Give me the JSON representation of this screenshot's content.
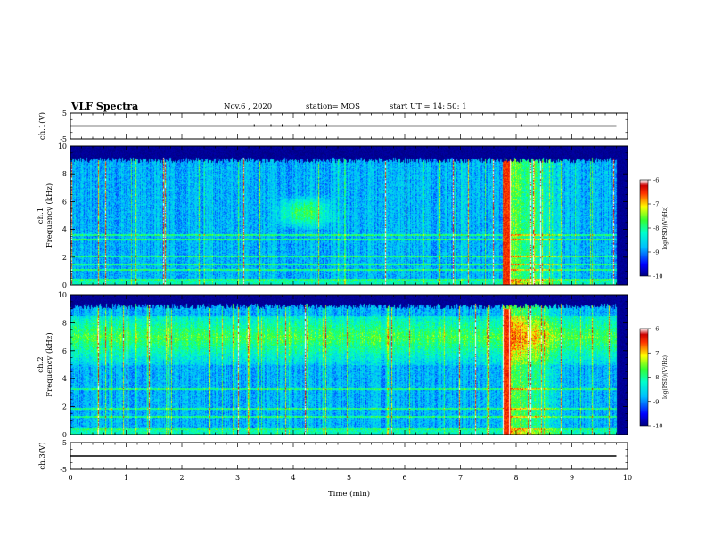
{
  "header": {
    "title": "VLF Spectra",
    "date": "Nov.6 , 2020",
    "station": "station= MOS",
    "start": "start UT = 14: 50: 1"
  },
  "chart_data": [
    {
      "type": "line",
      "panel": "ch1-voltage",
      "ylabel": "ch.1(V)",
      "ylim": [
        -5,
        5
      ],
      "yticks": [
        5,
        -5
      ],
      "xlim": [
        0,
        10
      ],
      "series": [
        {
          "values": [
            [
              0,
              0
            ],
            [
              9.8,
              0
            ]
          ]
        }
      ]
    },
    {
      "type": "heatmap",
      "panel": "ch1-spectrogram",
      "ylabel": "ch.1\nFrequency (kHz)",
      "ylim": [
        0,
        10
      ],
      "yticks": [
        0,
        2,
        4,
        6,
        8,
        10
      ],
      "xlim": [
        0,
        10
      ],
      "data_end_min": 9.8,
      "colorbar": {
        "label": "log(PSD)(V²/Hz)",
        "range": [
          -10,
          -6
        ],
        "ticks": [
          -6,
          -7,
          -8,
          -9,
          -10
        ]
      },
      "features": {
        "base_upper_khz": 9.0,
        "emission_band_khz": [
          4,
          6.5
        ],
        "emission_band_time_min": [
          3.6,
          4.8
        ],
        "storm_start_min": 7.75,
        "storm_end_min": 8.8,
        "noise_lines_khz": [
          0.4,
          1.1,
          1.5,
          2.1,
          3.3,
          3.6
        ]
      }
    },
    {
      "type": "heatmap",
      "panel": "ch2-spectrogram",
      "ylabel": "ch.2\nFrequency (kHz)",
      "ylim": [
        0,
        10
      ],
      "yticks": [
        0,
        2,
        4,
        6,
        8,
        10
      ],
      "xlim": [
        0,
        10
      ],
      "data_end_min": 9.8,
      "colorbar": {
        "label": "log(PSD)(V²/Hz)",
        "range": [
          -10,
          -6
        ],
        "ticks": [
          -6,
          -7,
          -8,
          -9,
          -10
        ]
      },
      "features": {
        "base_upper_khz": 9.2,
        "emission_band_khz": [
          6,
          8
        ],
        "storm_start_min": 7.75,
        "storm_end_min": 8.8,
        "noise_lines_khz": [
          0.4,
          1.3,
          1.9,
          3.3
        ]
      }
    },
    {
      "type": "line",
      "panel": "ch3-voltage",
      "ylabel": "ch.3(V)",
      "ylim": [
        -5,
        5
      ],
      "yticks": [
        5,
        -5
      ],
      "xlim": [
        0,
        10
      ],
      "xlabel": "Time (min)",
      "xticks": [
        0,
        1,
        2,
        3,
        4,
        5,
        6,
        7,
        8,
        9,
        10
      ],
      "series": [
        {
          "values": [
            [
              0,
              0
            ],
            [
              9.8,
              0
            ]
          ]
        }
      ]
    }
  ]
}
